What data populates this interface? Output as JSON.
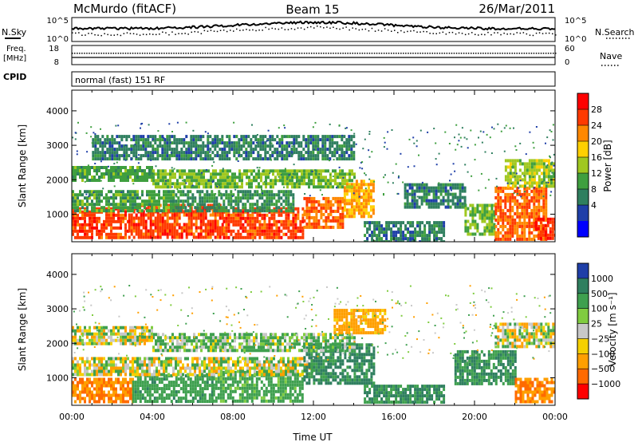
{
  "header": {
    "station": "McMurdo (fitACF)",
    "beam": "Beam 15",
    "date": "26/Mar/2011"
  },
  "top_panels": {
    "nsky_label": "N.Sky",
    "nsky_ticks": [
      "10^5",
      "10^0"
    ],
    "nsearch_label": "N.Search",
    "nsearch_ticks": [
      "10^5",
      "10^0"
    ],
    "freq_label_1": "Freq.",
    "freq_label_2": "[MHz]",
    "freq_ticks": [
      "18",
      "8"
    ],
    "nave_label": "Nave",
    "nave_ticks": [
      "60",
      "0"
    ],
    "cpid_label": "CPID",
    "cpid_text": "normal (fast) 151 RF"
  },
  "colors": {
    "power_scale": [
      "#0000ff",
      "#1f3fa8",
      "#2f7f5f",
      "#3f9f3f",
      "#a0c820",
      "#ffd000",
      "#ff8800",
      "#ff3a00",
      "#ff0000"
    ],
    "velocity_scale": [
      "#1f3fa8",
      "#2f7f5f",
      "#3fa04f",
      "#80cc40",
      "#c8c8c8",
      "#f5d000",
      "#ff9f00",
      "#ff6a00",
      "#ff0000"
    ]
  },
  "chart_data": [
    {
      "type": "heatmap",
      "panel": "power",
      "ylabel": "Slant Range [km]",
      "xlim": [
        0,
        24
      ],
      "ylim": [
        200,
        4600
      ],
      "yticks": [
        "1000",
        "2000",
        "3000",
        "4000"
      ],
      "colorbar": {
        "label": "Power [dB]",
        "ticks": [
          "28",
          "24",
          "20",
          "16",
          "12",
          "8",
          "4"
        ],
        "range": [
          0,
          32
        ]
      },
      "regions": [
        {
          "t0": 0.0,
          "t1": 2.8,
          "r0": 300,
          "r1": 1200,
          "level": 28
        },
        {
          "t0": 2.8,
          "t1": 7.5,
          "r0": 300,
          "r1": 1300,
          "level": 28
        },
        {
          "t0": 7.5,
          "t1": 11.5,
          "r0": 350,
          "r1": 1200,
          "level": 28
        },
        {
          "t0": 11.5,
          "t1": 13.5,
          "r0": 600,
          "r1": 1500,
          "level": 26
        },
        {
          "t0": 13.5,
          "t1": 15.0,
          "r0": 900,
          "r1": 2000,
          "level": 22
        },
        {
          "t0": 0.0,
          "t1": 5.0,
          "r0": 1100,
          "r1": 1700,
          "level": 12
        },
        {
          "t0": 5.0,
          "t1": 11.0,
          "r0": 1100,
          "r1": 1700,
          "level": 10
        },
        {
          "t0": 0.0,
          "t1": 4.0,
          "r0": 2000,
          "r1": 2400,
          "level": 12
        },
        {
          "t0": 4.0,
          "t1": 14.0,
          "r0": 1800,
          "r1": 2300,
          "level": 14
        },
        {
          "t0": 14.5,
          "t1": 18.5,
          "r0": 200,
          "r1": 800,
          "level": 8
        },
        {
          "t0": 16.5,
          "t1": 19.5,
          "r0": 1200,
          "r1": 1900,
          "level": 8
        },
        {
          "t0": 19.5,
          "t1": 21.0,
          "r0": 400,
          "r1": 1300,
          "level": 14
        },
        {
          "t0": 21.0,
          "t1": 23.5,
          "r0": 300,
          "r1": 1800,
          "level": 26
        },
        {
          "t0": 23.0,
          "t1": 24.0,
          "r0": 300,
          "r1": 900,
          "level": 30
        },
        {
          "t0": 21.5,
          "t1": 24.0,
          "r0": 1800,
          "r1": 2600,
          "level": 16
        },
        {
          "t0": 1.0,
          "t1": 14.0,
          "r0": 2600,
          "r1": 3300,
          "level": 8
        }
      ]
    },
    {
      "type": "heatmap",
      "panel": "velocity",
      "xlabel": "Time UT",
      "ylabel": "Slant Range [km]",
      "xlim": [
        0,
        24
      ],
      "ylim": [
        200,
        4600
      ],
      "xticks": [
        "00:00",
        "04:00",
        "08:00",
        "12:00",
        "16:00",
        "20:00",
        "00:00"
      ],
      "yticks": [
        "1000",
        "2000",
        "3000",
        "4000"
      ],
      "colorbar": {
        "label": "Velocity [m s⁻¹]",
        "ticks": [
          "1000",
          "500",
          "100",
          "25",
          "−25",
          "−100",
          "−500",
          "−1000"
        ],
        "range": [
          -1200,
          1200
        ]
      },
      "regions": [
        {
          "t0": 0.0,
          "t1": 3.0,
          "r0": 300,
          "r1": 1000,
          "level": -300
        },
        {
          "t0": 3.0,
          "t1": 7.0,
          "r0": 300,
          "r1": 1100,
          "level": 200
        },
        {
          "t0": 7.0,
          "t1": 11.5,
          "r0": 300,
          "r1": 1200,
          "level": 150
        },
        {
          "t0": 0.0,
          "t1": 12.0,
          "r0": 1100,
          "r1": 1600,
          "level": 0
        },
        {
          "t0": 11.5,
          "t1": 15.0,
          "r0": 800,
          "r1": 2000,
          "level": 350
        },
        {
          "t0": 4.0,
          "t1": 14.0,
          "r0": 1800,
          "r1": 2300,
          "level": 80
        },
        {
          "t0": 0.0,
          "t1": 4.0,
          "r0": 2000,
          "r1": 2500,
          "level": 0
        },
        {
          "t0": 14.5,
          "t1": 18.5,
          "r0": 250,
          "r1": 800,
          "level": 300
        },
        {
          "t0": 19.0,
          "t1": 22.0,
          "r0": 800,
          "r1": 1800,
          "level": 300
        },
        {
          "t0": 22.0,
          "t1": 24.0,
          "r0": 300,
          "r1": 1000,
          "level": -300
        },
        {
          "t0": 21.0,
          "t1": 24.0,
          "r0": 1900,
          "r1": 2600,
          "level": 0
        },
        {
          "t0": 13.0,
          "t1": 15.5,
          "r0": 2300,
          "r1": 3000,
          "level": -150
        }
      ]
    }
  ]
}
